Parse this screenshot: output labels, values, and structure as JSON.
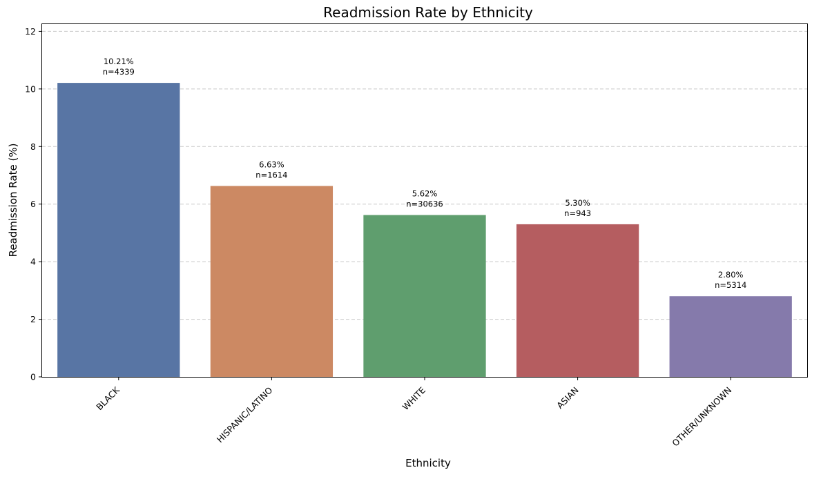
{
  "chart_data": {
    "type": "bar",
    "title": "Readmission Rate by Ethnicity",
    "xlabel": "Ethnicity",
    "ylabel": "Readmission Rate (%)",
    "ylim": [
      0,
      12.25
    ],
    "yticks": [
      0,
      2,
      4,
      6,
      8,
      10,
      12
    ],
    "grid": "y-dashed",
    "categories": [
      "BLACK",
      "HISPANIC/LATINO",
      "WHITE",
      "ASIAN",
      "OTHER/UNKNOWN"
    ],
    "values": [
      10.21,
      6.63,
      5.62,
      5.3,
      2.8
    ],
    "counts": [
      4339,
      1614,
      30636,
      943,
      5314
    ],
    "value_labels": [
      "10.21%",
      "6.63%",
      "5.62%",
      "5.30%",
      "2.80%"
    ],
    "count_labels": [
      "n=4339",
      "n=1614",
      "n=30636",
      "n=943",
      "n=5314"
    ],
    "colors": [
      "#5875a4",
      "#cc8963",
      "#5f9e6e",
      "#b55d60",
      "#857aab"
    ]
  }
}
